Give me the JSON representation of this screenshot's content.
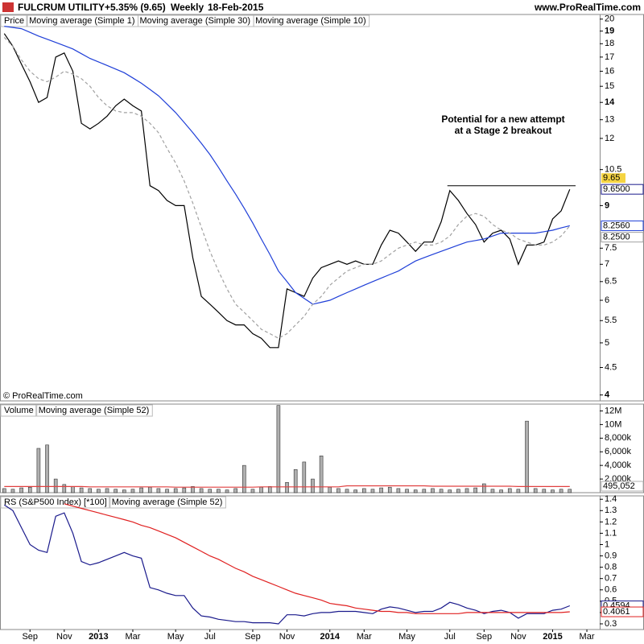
{
  "chart_data": [
    {
      "type": "line",
      "log_scale": true,
      "title": "FULCRUM UTILITY",
      "change": "+5.35% (9.65)",
      "period": "Weekly",
      "date": "18-Feb-2015",
      "source": "www.ProRealTime.com",
      "panel_label": "Price",
      "copyright": "© ProRealTime.com",
      "annotation": [
        "Potential for a new attempt",
        "at a Stage 2 breakout"
      ],
      "hline": 9.8,
      "last_price_label": "9.65",
      "ylim": [
        3.9,
        20.4
      ],
      "yticks": [
        4,
        4.5,
        5,
        5.5,
        6,
        6.5,
        7,
        7.5,
        9,
        10.5,
        12,
        13,
        14,
        15,
        16,
        17,
        18,
        19,
        20
      ],
      "series": [
        {
          "name": "Moving average (Simple 1)",
          "color": "#000000",
          "last_value_label": "9.6500",
          "values": [
            18.8,
            17.8,
            16.5,
            15.3,
            14,
            14.3,
            17,
            17.3,
            16,
            12.8,
            12.5,
            12.8,
            13.2,
            13.8,
            14.2,
            13.8,
            13.5,
            9.8,
            9.6,
            9.2,
            9,
            9,
            7.2,
            6.1,
            5.9,
            5.7,
            5.5,
            5.4,
            5.4,
            5.2,
            5.1,
            4.9,
            4.9,
            6.3,
            6.2,
            6.1,
            6.6,
            6.9,
            7,
            7.1,
            7,
            7.1,
            7,
            7,
            7.6,
            8.1,
            8,
            7.7,
            7.4,
            7.7,
            7.7,
            8.4,
            9.6,
            9.2,
            8.7,
            8.3,
            7.7,
            8,
            8.1,
            7.8,
            7,
            7.6,
            7.6,
            7.7,
            8.5,
            8.8,
            9.65,
            null,
            null,
            null
          ]
        },
        {
          "name": "Moving average (Simple 30)",
          "color": "#1f3fd8",
          "last_value_label": "8.2560",
          "values": [
            19.4,
            19.3,
            19.2,
            18.9,
            18.6,
            18.35,
            18.1,
            17.85,
            17.6,
            17.25,
            16.9,
            16.65,
            16.4,
            16.15,
            15.9,
            15.55,
            15.2,
            14.8,
            14.4,
            13.9,
            13.4,
            12.85,
            12.3,
            11.75,
            11.2,
            10.6,
            10,
            9.45,
            8.9,
            8.35,
            7.8,
            7.3,
            6.8,
            6.5,
            6.2,
            6.05,
            5.9,
            5.95,
            6,
            6.1,
            6.2,
            6.3,
            6.4,
            6.5,
            6.6,
            6.7,
            6.8,
            6.95,
            7.1,
            7.2,
            7.3,
            7.4,
            7.5,
            7.6,
            7.7,
            7.75,
            7.8,
            7.9,
            8,
            8,
            8,
            8,
            8,
            8.05,
            8.1,
            8.18,
            8.256,
            null,
            null,
            null
          ]
        },
        {
          "name": "Moving average (Simple 10)",
          "color": "#a0a0a0",
          "dash": true,
          "last_value_label": "8.2500",
          "values": [
            18.5,
            17.8,
            16.8,
            16,
            15.5,
            15.3,
            15.6,
            16,
            15.8,
            15.5,
            15,
            14.3,
            13.8,
            13.5,
            13.4,
            13.4,
            13.2,
            12.8,
            12.3,
            11.5,
            10.8,
            10,
            9.1,
            8.2,
            7.4,
            6.8,
            6.3,
            5.9,
            5.7,
            5.5,
            5.3,
            5.2,
            5.1,
            5.2,
            5.4,
            5.6,
            5.9,
            6.1,
            6.4,
            6.6,
            6.8,
            6.9,
            7,
            7,
            7.1,
            7.3,
            7.5,
            7.6,
            7.7,
            7.6,
            7.6,
            7.7,
            7.9,
            8.3,
            8.6,
            8.7,
            8.6,
            8.3,
            8.1,
            8,
            7.8,
            7.7,
            7.6,
            7.6,
            7.7,
            7.9,
            8.25,
            null,
            null,
            null
          ]
        }
      ]
    },
    {
      "type": "bar",
      "panel_label": "Volume",
      "ylim": [
        0,
        13000000
      ],
      "yticks": [
        {
          "value": 2000000,
          "label": "2,000k"
        },
        {
          "value": 4000000,
          "label": "4,000k"
        },
        {
          "value": 6000000,
          "label": "6,000k"
        },
        {
          "value": 8000000,
          "label": "8,000k"
        },
        {
          "value": 10000000,
          "label": "10M"
        },
        {
          "value": 12000000,
          "label": "12M"
        }
      ],
      "series": [
        {
          "name": "Volume",
          "color": "#b0b0b0",
          "last_value_label": "495,052",
          "values": [
            600000,
            500000,
            700000,
            800000,
            6500000,
            7000000,
            2000000,
            1200000,
            900000,
            700000,
            600000,
            500000,
            600000,
            500000,
            400000,
            500000,
            700000,
            800000,
            600000,
            500000,
            600000,
            700000,
            900000,
            600000,
            500000,
            500000,
            400000,
            600000,
            4000000,
            500000,
            800000,
            900000,
            12800000,
            1500000,
            3400000,
            4500000,
            2000000,
            5400000,
            800000,
            600000,
            500000,
            400000,
            600000,
            500000,
            700000,
            800000,
            600000,
            500000,
            400000,
            500000,
            600000,
            500000,
            400000,
            500000,
            600000,
            700000,
            1300000,
            500000,
            400000,
            600000,
            500000,
            10500000,
            600000,
            500000,
            400000,
            500000,
            495052,
            null,
            null,
            null
          ]
        },
        {
          "name": "Moving average (Simple 52)",
          "type": "line",
          "color": "#e04040",
          "values": [
            900000,
            900000,
            900000,
            900000,
            900000,
            900000,
            900000,
            900000,
            900000,
            900000,
            850000,
            850000,
            850000,
            850000,
            850000,
            850000,
            850000,
            850000,
            850000,
            850000,
            800000,
            800000,
            800000,
            800000,
            800000,
            800000,
            800000,
            800000,
            800000,
            800000,
            850000,
            850000,
            850000,
            850000,
            850000,
            850000,
            850000,
            850000,
            850000,
            850000,
            1000000,
            1000000,
            1000000,
            1000000,
            1000000,
            1000000,
            1000000,
            1000000,
            1000000,
            1000000,
            950000,
            950000,
            950000,
            950000,
            950000,
            950000,
            950000,
            950000,
            950000,
            950000,
            900000,
            900000,
            900000,
            900000,
            900000,
            900000,
            900000,
            null,
            null,
            null
          ]
        }
      ]
    },
    {
      "type": "line",
      "panel_label": "RS (S&P500 Index) [*100]",
      "ylim": [
        0.25,
        1.43
      ],
      "yticks": [
        0.3,
        0.4,
        0.5,
        0.6,
        0.7,
        0.8,
        0.9,
        1,
        1.1,
        1.2,
        1.3,
        1.4
      ],
      "categories": [
        null,
        null,
        null,
        "Sep",
        null,
        null,
        null,
        "Nov",
        null,
        null,
        null,
        "2013",
        null,
        null,
        null,
        "Mar",
        null,
        null,
        null,
        null,
        "May",
        null,
        null,
        null,
        "Jul",
        null,
        null,
        null,
        null,
        "Sep",
        null,
        null,
        null,
        "Nov",
        null,
        null,
        null,
        null,
        "2014",
        null,
        null,
        null,
        "Mar",
        null,
        null,
        null,
        null,
        "May",
        null,
        null,
        null,
        null,
        "Jul",
        null,
        null,
        null,
        "Sep",
        null,
        null,
        null,
        "Nov",
        null,
        null,
        null,
        "2015",
        null,
        null,
        null,
        "Mar",
        null
      ],
      "series": [
        {
          "name": "RS (S&P500 Index) [*100]",
          "color": "#1a1a8c",
          "last_value_label": "0.4594",
          "values": [
            1.35,
            1.3,
            1.15,
            1,
            0.95,
            0.93,
            1.25,
            1.28,
            1.1,
            0.85,
            0.82,
            0.84,
            0.87,
            0.9,
            0.93,
            0.9,
            0.88,
            0.62,
            0.6,
            0.57,
            0.55,
            0.55,
            0.44,
            0.37,
            0.36,
            0.34,
            0.33,
            0.32,
            0.32,
            0.31,
            0.31,
            0.31,
            0.3,
            0.38,
            0.38,
            0.37,
            0.39,
            0.4,
            0.4,
            0.41,
            0.41,
            0.41,
            0.4,
            0.39,
            0.43,
            0.45,
            0.44,
            0.42,
            0.4,
            0.41,
            0.41,
            0.44,
            0.49,
            0.47,
            0.44,
            0.42,
            0.39,
            0.41,
            0.42,
            0.4,
            0.35,
            0.39,
            0.39,
            0.39,
            0.42,
            0.43,
            0.4594,
            null,
            null,
            null
          ]
        },
        {
          "name": "Moving average (Simple 52)",
          "color": "#e02020",
          "last_value_label": "0.4061",
          "values": [
            null,
            null,
            null,
            null,
            null,
            null,
            null,
            1.36,
            1.34,
            1.32,
            1.3,
            1.28,
            1.26,
            1.24,
            1.22,
            1.2,
            1.17,
            1.15,
            1.12,
            1.09,
            1.06,
            1.02,
            0.98,
            0.94,
            0.9,
            0.87,
            0.83,
            0.79,
            0.76,
            0.72,
            0.69,
            0.66,
            0.63,
            0.6,
            0.57,
            0.55,
            0.53,
            0.51,
            0.48,
            0.47,
            0.46,
            0.44,
            0.43,
            0.42,
            0.41,
            0.41,
            0.4,
            0.4,
            0.39,
            0.39,
            0.39,
            0.39,
            0.39,
            0.39,
            0.4,
            0.4,
            0.4,
            0.4,
            0.4,
            0.4,
            0.4,
            0.4,
            0.4,
            0.4,
            0.4,
            0.4,
            0.4061,
            null,
            null,
            null
          ]
        }
      ]
    }
  ]
}
